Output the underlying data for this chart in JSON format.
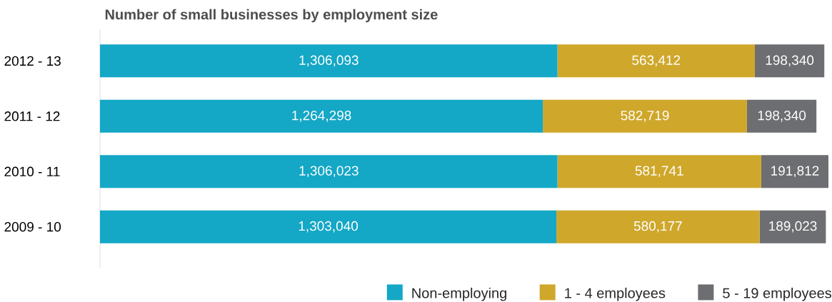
{
  "chart_data": {
    "type": "bar",
    "orientation": "horizontal",
    "stacked": true,
    "title": "Number of small businesses by employment size",
    "categories": [
      "2012 - 13",
      "2011 - 12",
      "2010 - 11",
      "2009 - 10"
    ],
    "series": [
      {
        "name": "Non-employing",
        "color": "#14a7c6",
        "values": [
          1306093,
          1264298,
          1306023,
          1303040
        ],
        "value_labels": [
          "1,306,093",
          "1,264,298",
          "1,306,023",
          "1,303,040"
        ]
      },
      {
        "name": "1 - 4 employees",
        "color": "#cfa72b",
        "values": [
          563412,
          582719,
          581741,
          580177
        ],
        "value_labels": [
          "563,412",
          "582,719",
          "581,741",
          "580,177"
        ]
      },
      {
        "name": "5 - 19 employees",
        "color": "#6d6e71",
        "values": [
          198340,
          198340,
          191812,
          189023
        ],
        "value_labels": [
          "198,340",
          "198,340",
          "191,812",
          "189,023"
        ]
      }
    ],
    "legend": "bottom"
  }
}
